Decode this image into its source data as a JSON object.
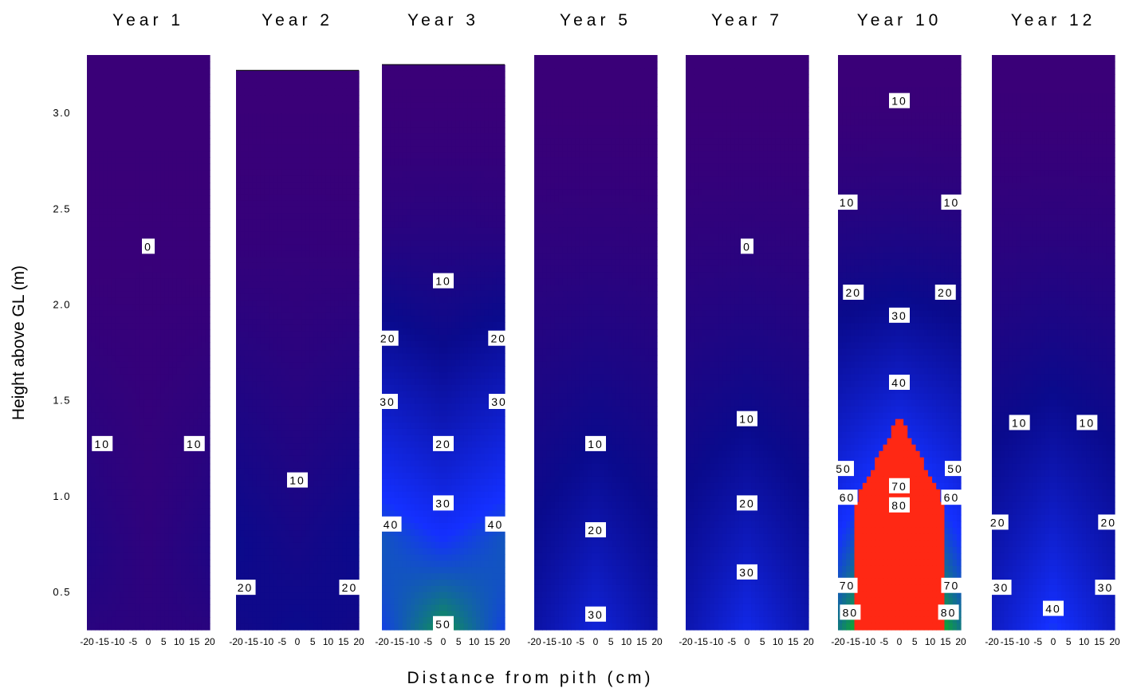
{
  "chart_data": {
    "type": "heatmap",
    "ylabel": "Height above GL (m)",
    "xlabel": "Distance from pith (cm)",
    "ylim": [
      0.3,
      3.3
    ],
    "yticks": [
      "0.5",
      "1.0",
      "1.5",
      "2.0",
      "2.5",
      "3.0"
    ],
    "ytick_values": [
      0.5,
      1.0,
      1.5,
      2.0,
      2.5,
      3.0
    ],
    "xlim": [
      -20,
      20
    ],
    "xticks": [
      "-20",
      "-15",
      "-10",
      "-5",
      "0",
      "5",
      "10",
      "15",
      "20"
    ],
    "xtick_values": [
      -20,
      -15,
      -10,
      -5,
      0,
      5,
      10,
      15,
      20
    ],
    "colorscale": [
      "#3a0078",
      "#0a0a8c",
      "#1430ff",
      "#0fa03c",
      "#14d21e",
      "#9ee61e",
      "#ffff28",
      "#ffa01e",
      "#ff2814"
    ],
    "colorscale_values": [
      0,
      10,
      25,
      35,
      42,
      50,
      60,
      70,
      80
    ],
    "panels": [
      {
        "title": "Year 1",
        "top": 3.3,
        "gradient": 3,
        "wedge_amp": 5,
        "wedge_h": 2.1,
        "labels": [
          {
            "text": "0",
            "x": 0,
            "y": 2.3
          },
          {
            "text": "10",
            "x": -15,
            "y": 1.27
          },
          {
            "text": "10",
            "x": 15,
            "y": 1.27
          }
        ]
      },
      {
        "title": "Year 2",
        "top": 3.22,
        "gradient": 10,
        "wedge_amp": 6,
        "wedge_h": 2.3,
        "labels": [
          {
            "text": "10",
            "x": 0,
            "y": 1.08
          },
          {
            "text": "20",
            "x": -17,
            "y": 0.52
          },
          {
            "text": "20",
            "x": 17,
            "y": 0.52
          }
        ]
      },
      {
        "title": "Year 3",
        "top": 3.25,
        "gradient": 34,
        "wedge_amp": 14,
        "wedge_h": 2.4,
        "labels": [
          {
            "text": "10",
            "x": 0,
            "y": 2.12
          },
          {
            "text": "20",
            "x": -18,
            "y": 1.82
          },
          {
            "text": "20",
            "x": 18,
            "y": 1.82
          },
          {
            "text": "30",
            "x": -20,
            "y": 1.49
          },
          {
            "text": "30",
            "x": 20,
            "y": 1.49
          },
          {
            "text": "20",
            "x": 0,
            "y": 1.27
          },
          {
            "text": "30",
            "x": 0,
            "y": 0.96
          },
          {
            "text": "40",
            "x": -17,
            "y": 0.85
          },
          {
            "text": "40",
            "x": 17,
            "y": 0.85
          },
          {
            "text": "50",
            "x": 0,
            "y": 0.33
          }
        ]
      },
      {
        "title": "Year 5",
        "top": 3.3,
        "gradient": 20,
        "wedge_amp": 0,
        "wedge_h": 2.1,
        "labels": [
          {
            "text": "10",
            "x": 0,
            "y": 1.27
          },
          {
            "text": "20",
            "x": 0,
            "y": 0.82
          },
          {
            "text": "30",
            "x": 0,
            "y": 0.38
          }
        ]
      },
      {
        "title": "Year 7",
        "top": 3.3,
        "gradient": 22,
        "wedge_amp": 0,
        "wedge_h": 2.1,
        "labels": [
          {
            "text": "0",
            "x": 0,
            "y": 2.3
          },
          {
            "text": "10",
            "x": 0,
            "y": 1.4
          },
          {
            "text": "20",
            "x": 0,
            "y": 0.96
          },
          {
            "text": "30",
            "x": 0,
            "y": 0.6
          }
        ]
      },
      {
        "title": "Year 10",
        "top": 3.3,
        "gradient": 48,
        "wedge_amp": 0,
        "wedge_h": 2.3,
        "core": true,
        "labels": [
          {
            "text": "10",
            "x": 0,
            "y": 3.06
          },
          {
            "text": "10",
            "x": -17,
            "y": 2.53
          },
          {
            "text": "10",
            "x": 17,
            "y": 2.53
          },
          {
            "text": "20",
            "x": -15,
            "y": 2.06
          },
          {
            "text": "20",
            "x": 15,
            "y": 2.06
          },
          {
            "text": "30",
            "x": 0,
            "y": 1.94
          },
          {
            "text": "40",
            "x": 0,
            "y": 1.59
          },
          {
            "text": "50",
            "x": -20,
            "y": 1.14
          },
          {
            "text": "50",
            "x": 20,
            "y": 1.14
          },
          {
            "text": "70",
            "x": 0,
            "y": 1.05
          },
          {
            "text": "60",
            "x": -17,
            "y": 0.99
          },
          {
            "text": "60",
            "x": 17,
            "y": 0.99
          },
          {
            "text": "80",
            "x": 0,
            "y": 0.95
          },
          {
            "text": "70",
            "x": -17,
            "y": 0.53
          },
          {
            "text": "70",
            "x": 17,
            "y": 0.53
          },
          {
            "text": "80",
            "x": -16,
            "y": 0.39
          },
          {
            "text": "80",
            "x": 16,
            "y": 0.39
          }
        ]
      },
      {
        "title": "Year 12",
        "top": 3.3,
        "gradient": 26,
        "wedge_amp": 0,
        "wedge_h": 2.3,
        "labels": [
          {
            "text": "10",
            "x": -11,
            "y": 1.38
          },
          {
            "text": "10",
            "x": 11,
            "y": 1.38
          },
          {
            "text": "20",
            "x": -18,
            "y": 0.86
          },
          {
            "text": "20",
            "x": 18,
            "y": 0.86
          },
          {
            "text": "30",
            "x": -17,
            "y": 0.52
          },
          {
            "text": "30",
            "x": 17,
            "y": 0.52
          },
          {
            "text": "40",
            "x": 0,
            "y": 0.41
          }
        ]
      }
    ]
  }
}
